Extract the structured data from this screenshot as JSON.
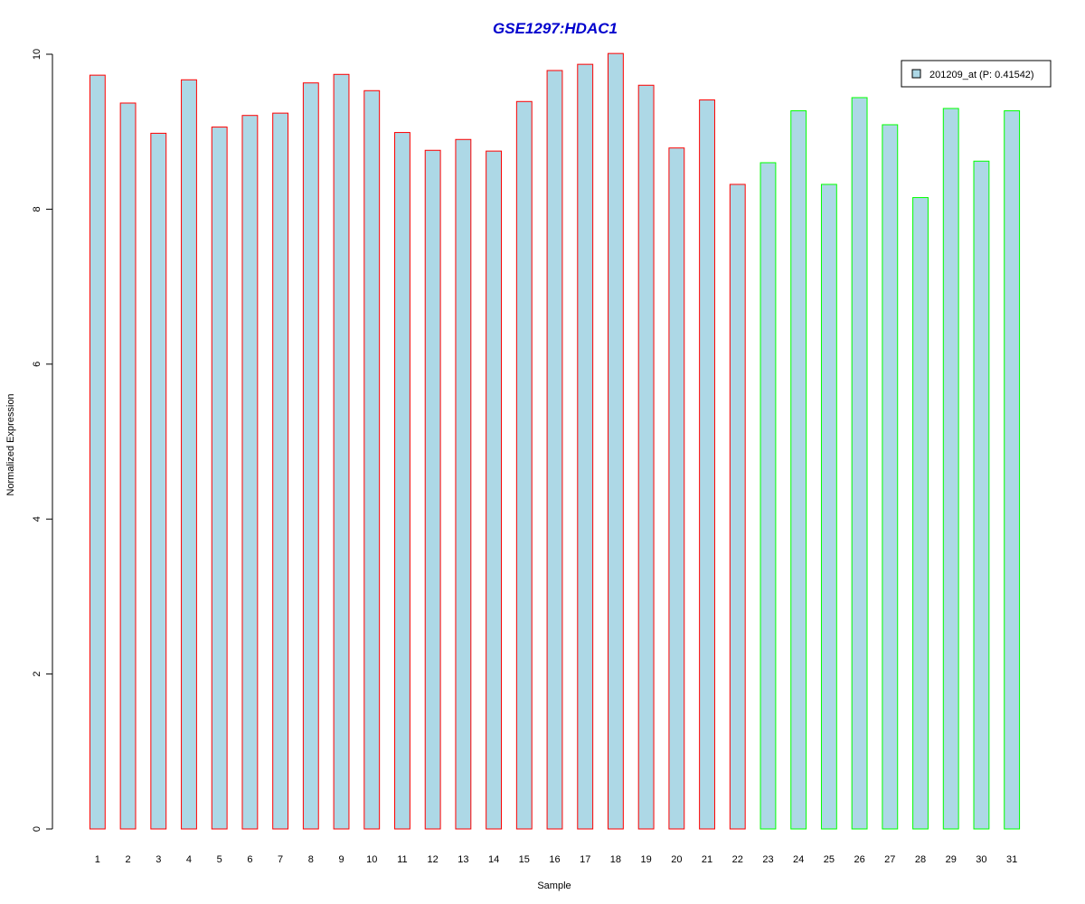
{
  "chart_data": {
    "type": "bar",
    "title": "GSE1297:HDAC1",
    "xlabel": "Sample",
    "ylabel": "Normalized Expression",
    "ylim": [
      0,
      10
    ],
    "y_ticks": [
      0,
      2,
      4,
      6,
      8,
      10
    ],
    "categories": [
      "1",
      "2",
      "3",
      "4",
      "5",
      "6",
      "7",
      "8",
      "9",
      "10",
      "11",
      "12",
      "13",
      "14",
      "15",
      "16",
      "17",
      "18",
      "19",
      "20",
      "21",
      "22",
      "23",
      "24",
      "25",
      "26",
      "27",
      "28",
      "29",
      "30",
      "31"
    ],
    "values": [
      9.73,
      9.37,
      8.98,
      9.67,
      9.06,
      9.21,
      9.24,
      9.63,
      9.74,
      9.53,
      8.99,
      8.76,
      8.9,
      8.75,
      9.39,
      9.79,
      9.87,
      10.01,
      9.6,
      8.79,
      9.41,
      8.32,
      8.6,
      9.27,
      8.32,
      9.44,
      9.09,
      8.15,
      9.3,
      8.62,
      9.27
    ],
    "groups": [
      "red",
      "red",
      "red",
      "red",
      "red",
      "red",
      "red",
      "red",
      "red",
      "red",
      "red",
      "red",
      "red",
      "red",
      "red",
      "red",
      "red",
      "red",
      "red",
      "red",
      "red",
      "red",
      "green",
      "green",
      "green",
      "green",
      "green",
      "green",
      "green",
      "green",
      "green"
    ],
    "legend": {
      "label": "201209_at (P: 0.41542)",
      "placement": "top-right"
    },
    "colors": {
      "bar_fill": "#ADD8E6",
      "group_red": "#FF0000",
      "group_green": "#00FF00",
      "title": "#0000CD",
      "axis": "#000000"
    },
    "grid": false
  }
}
